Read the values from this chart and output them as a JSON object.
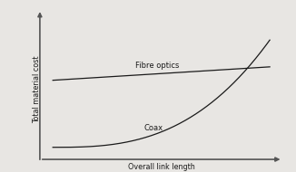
{
  "title": "",
  "ylabel": "Total material cost",
  "xlabel": "Overall link length",
  "background_color": "#e8e6e3",
  "line_color": "#1a1a1a",
  "axis_color": "#555555",
  "fibre_label": "Fibre optics",
  "coax_label": "Coax",
  "figsize": [
    3.26,
    1.9
  ],
  "dpi": 100
}
